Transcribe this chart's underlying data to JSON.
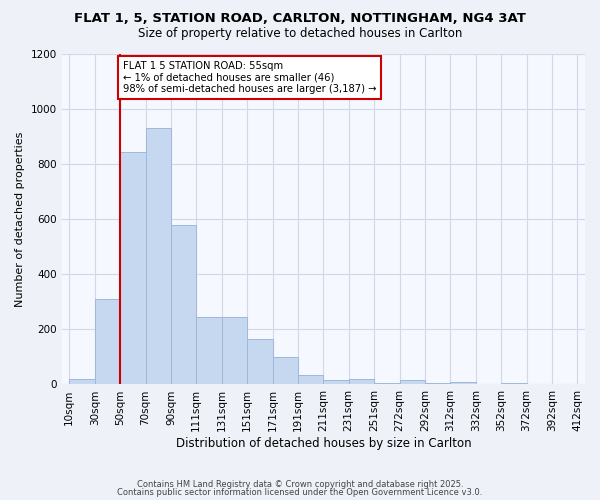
{
  "title1": "FLAT 1, 5, STATION ROAD, CARLTON, NOTTINGHAM, NG4 3AT",
  "title2": "Size of property relative to detached houses in Carlton",
  "xlabel": "Distribution of detached houses by size in Carlton",
  "ylabel": "Number of detached properties",
  "bin_labels": [
    "10sqm",
    "30sqm",
    "50sqm",
    "70sqm",
    "90sqm",
    "111sqm",
    "131sqm",
    "151sqm",
    "171sqm",
    "191sqm",
    "211sqm",
    "231sqm",
    "251sqm",
    "272sqm",
    "292sqm",
    "312sqm",
    "332sqm",
    "352sqm",
    "372sqm",
    "392sqm",
    "412sqm"
  ],
  "bar_heights": [
    20,
    310,
    845,
    930,
    580,
    245,
    245,
    165,
    100,
    35,
    15,
    20,
    5,
    15,
    5,
    10,
    0,
    5,
    0,
    0
  ],
  "bar_color": "#c5d8f0",
  "bar_edge_color": "#a0b8d8",
  "vline_x": 2,
  "vline_color": "#cc0000",
  "annotation_text": "FLAT 1 5 STATION ROAD: 55sqm\n← 1% of detached houses are smaller (46)\n98% of semi-detached houses are larger (3,187) →",
  "annotation_box_color": "#ffffff",
  "annotation_box_edge": "#cc0000",
  "ylim": [
    0,
    1200
  ],
  "yticks": [
    0,
    200,
    400,
    600,
    800,
    1000,
    1200
  ],
  "footer1": "Contains HM Land Registry data © Crown copyright and database right 2025.",
  "footer2": "Contains public sector information licensed under the Open Government Licence v3.0.",
  "bg_color": "#eef2f8",
  "plot_bg_color": "#f5f8fe",
  "grid_color": "#d0d8ea"
}
